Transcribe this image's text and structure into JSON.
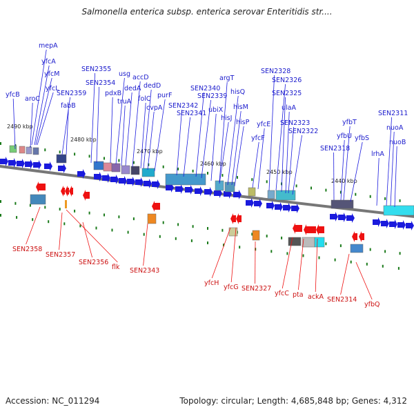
{
  "title": "Salmonella enterica subsp. enterica serovar Enteritidis str....",
  "footer": {
    "accession": "Accession: NC_011294",
    "topology": "Topology: circular; Length: 4,685,848 bp; Genes: 4,312"
  },
  "colors": {
    "forward_gene": "#1a1add",
    "reverse_gene": "#ee1111",
    "backbone": "#777777",
    "tick": "#1a7a1a"
  },
  "scale_labels": [
    "2490 kbp",
    "2480 kbp",
    "2470 kbp",
    "2460 kbp",
    "2450 kbp",
    "2440 kbp"
  ],
  "forward_genes": [
    "yfcB",
    "aroC",
    "yfcL",
    "yfcM",
    "yfcA",
    "mepA",
    "SEN2359",
    "fabB",
    "SEN2354",
    "SEN2355",
    "pdxB",
    "usg",
    "truA",
    "dedA",
    "accD",
    "folC",
    "dedD",
    "cvpA",
    "purF",
    "SEN2342",
    "SEN2341",
    "SEN2340",
    "SEN2339",
    "ubiX",
    "argT",
    "hisJ",
    "hisQ",
    "hisM",
    "hisP",
    "yfcF",
    "yfcE",
    "SEN2328",
    "SEN2326",
    "SEN2325",
    "ulaA",
    "SEN2323",
    "SEN2322",
    "SEN2318",
    "yfbU",
    "yfbT",
    "yfbS",
    "lrhA",
    "SEN2311",
    "nuoA",
    "nuoB"
  ],
  "reverse_genes": [
    "SEN2358",
    "SEN2357",
    "SEN2356",
    "flk",
    "SEN2343",
    "yfcH",
    "yfcG",
    "SEN2327",
    "yfcC",
    "pta",
    "ackA",
    "SEN2314",
    "yfbQ"
  ]
}
